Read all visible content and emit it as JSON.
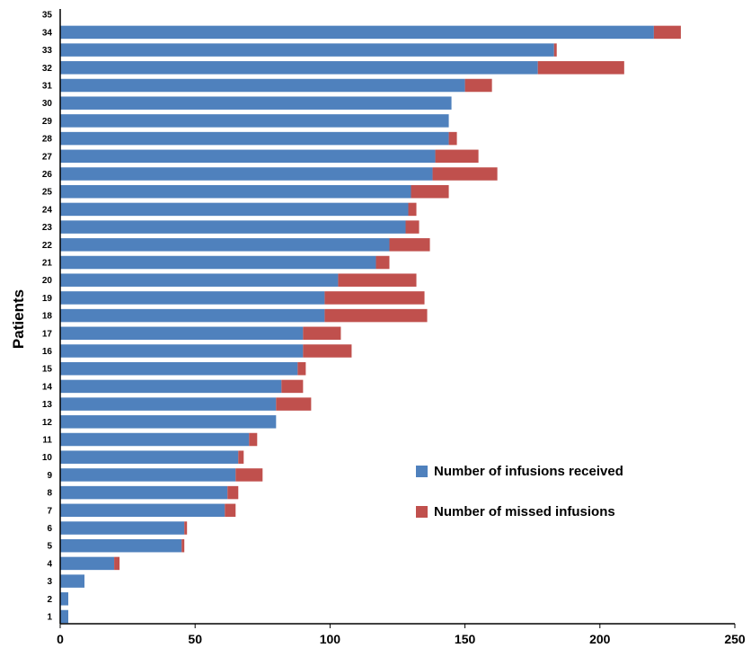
{
  "chart_data": {
    "type": "bar",
    "orientation": "horizontal",
    "stacked": true,
    "title": "",
    "xlabel": "",
    "ylabel": "Patients",
    "xlim": [
      0,
      250
    ],
    "x_ticks": [
      0,
      50,
      100,
      150,
      200,
      250
    ],
    "categories": [
      "1",
      "2",
      "3",
      "4",
      "5",
      "6",
      "7",
      "8",
      "9",
      "10",
      "11",
      "12",
      "13",
      "14",
      "15",
      "16",
      "17",
      "18",
      "19",
      "20",
      "21",
      "22",
      "23",
      "24",
      "25",
      "26",
      "27",
      "28",
      "29",
      "30",
      "31",
      "32",
      "33",
      "34",
      "35"
    ],
    "series": [
      {
        "name": "Number of infusions received",
        "color": "#4f81bd",
        "values": [
          3,
          3,
          9,
          20,
          45,
          46,
          61,
          62,
          65,
          66,
          70,
          80,
          80,
          82,
          88,
          90,
          90,
          98,
          98,
          103,
          117,
          122,
          128,
          129,
          130,
          138,
          139,
          144,
          144,
          145,
          150,
          177,
          183,
          220,
          0
        ]
      },
      {
        "name": "Number of missed infusions",
        "color": "#c0504d",
        "values": [
          0,
          0,
          0,
          2,
          1,
          1,
          4,
          4,
          10,
          2,
          3,
          0,
          13,
          8,
          3,
          18,
          14,
          38,
          37,
          29,
          5,
          15,
          5,
          3,
          14,
          24,
          16,
          3,
          0,
          0,
          10,
          32,
          1,
          10,
          0
        ]
      }
    ],
    "legend_position": "bottom-right",
    "grid": false
  }
}
